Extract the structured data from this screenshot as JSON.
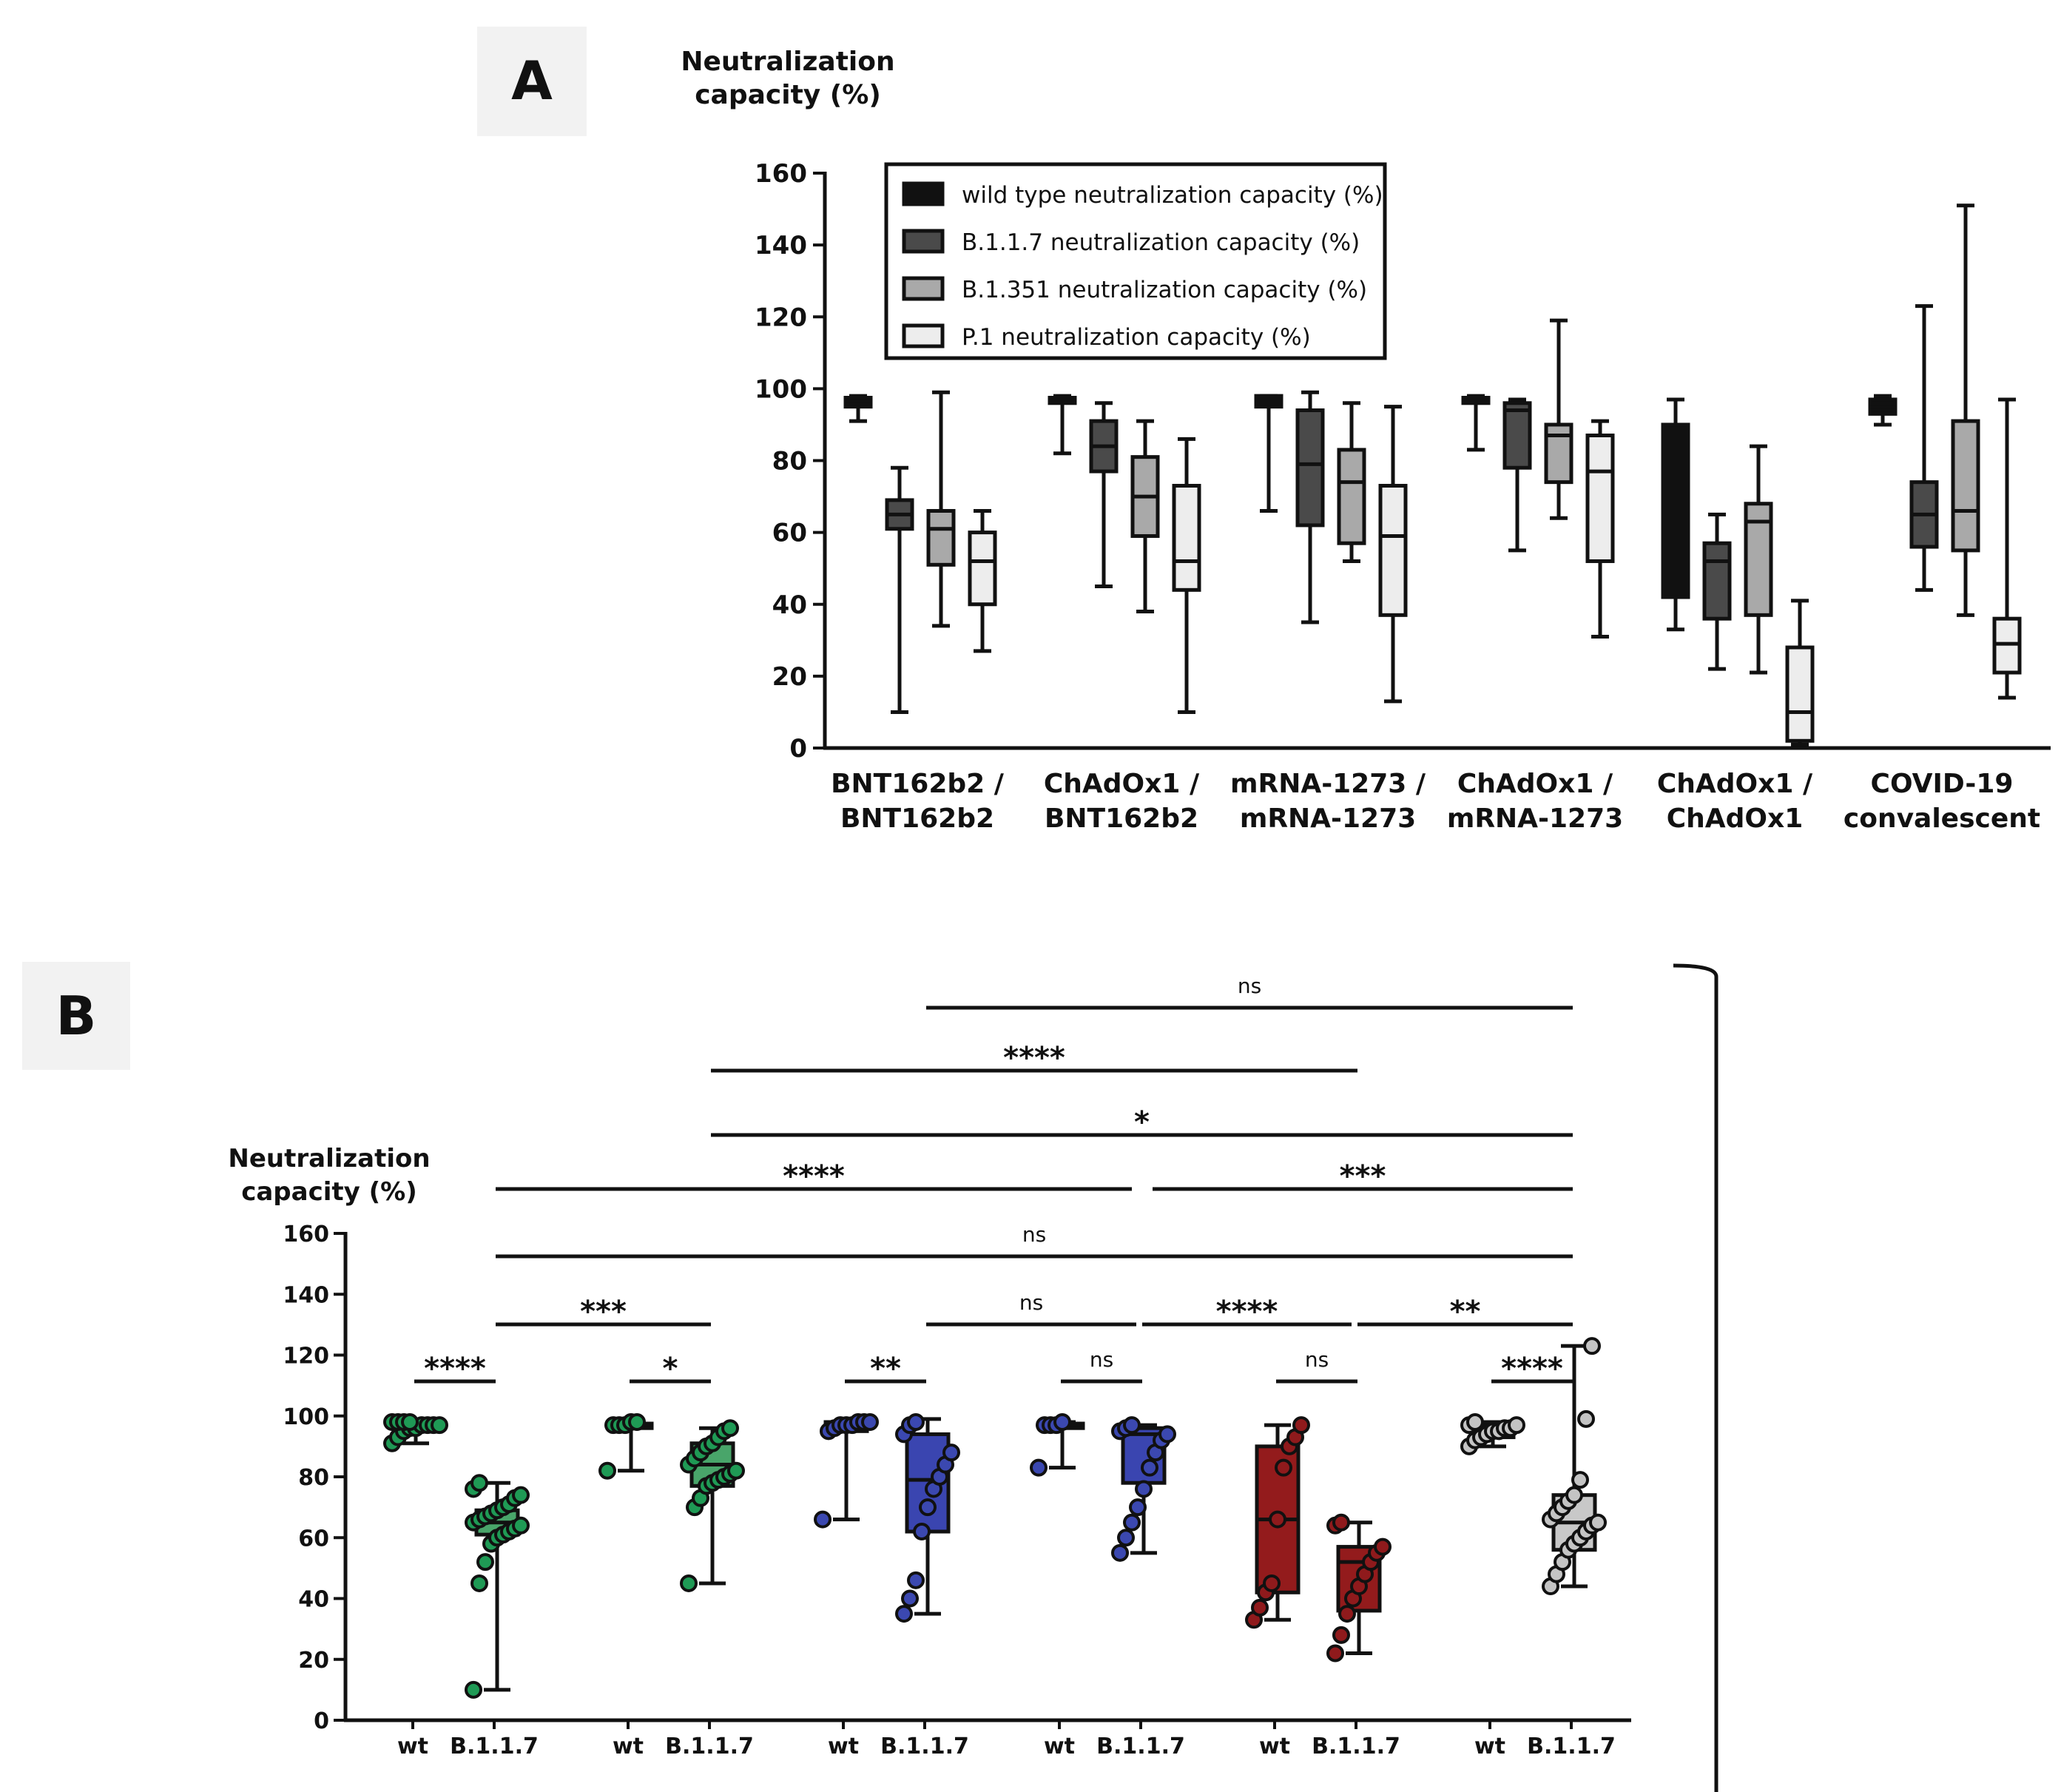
{
  "colors": {
    "wt_fill": "#111111",
    "b117_fill": "#4a4a4a",
    "b1351_fill": "#a9a9a9",
    "p1_fill": "#ededed",
    "panel_bg": "#f2f2f2",
    "green": "#1f9a55",
    "blue": "#3b48b0",
    "red": "#8f1a1c",
    "grey": "#c4c4c4",
    "green_box": "#49a56a",
    "blue_box": "#3a45b0",
    "red_box": "#931b1c",
    "grey_box": "#c8c8c8"
  },
  "chart_data": [
    {
      "panel": "A",
      "type": "box",
      "ylabel": "Neutralization capacity (%)",
      "ylim": [
        0,
        160
      ],
      "yticks": [
        0,
        20,
        40,
        60,
        80,
        100,
        120,
        140,
        160
      ],
      "ytick_labels": [
        "0",
        "20",
        "40",
        "60",
        "80",
        "100",
        "120",
        "140",
        "160"
      ],
      "legend": [
        "wild type neutralization capacity (%)",
        "B.1.1.7 neutralization capacity (%)",
        "B.1.351 neutralization capacity (%)",
        "P.1 neutralization capacity (%)"
      ],
      "legend_position": "top-left",
      "groups": [
        {
          "label1": "BNT162b2 /",
          "label2": "BNT162b2",
          "boxes": [
            {
              "series": "wild type",
              "min": 91,
              "q1": 95,
              "median": 96.5,
              "q3": 97.5,
              "max": 98
            },
            {
              "series": "B.1.1.7",
              "min": 10,
              "q1": 61,
              "median": 65,
              "q3": 69,
              "max": 78
            },
            {
              "series": "B.1.351",
              "min": 34,
              "q1": 51,
              "median": 61,
              "q3": 66,
              "max": 99
            },
            {
              "series": "P.1",
              "min": 27,
              "q1": 40,
              "median": 52,
              "q3": 60,
              "max": 66
            }
          ]
        },
        {
          "label1": "ChAdOx1 /",
          "label2": "BNT162b2",
          "boxes": [
            {
              "series": "wild type",
              "min": 82,
              "q1": 96,
              "median": 97,
              "q3": 97.5,
              "max": 98
            },
            {
              "series": "B.1.1.7",
              "min": 45,
              "q1": 77,
              "median": 84,
              "q3": 91,
              "max": 96
            },
            {
              "series": "B.1.351",
              "min": 38,
              "q1": 59,
              "median": 70,
              "q3": 81,
              "max": 91
            },
            {
              "series": "P.1",
              "min": 10,
              "q1": 44,
              "median": 52,
              "q3": 73,
              "max": 86
            }
          ]
        },
        {
          "label1": "mRNA-1273 /",
          "label2": "mRNA-1273",
          "boxes": [
            {
              "series": "wild type",
              "min": 66,
              "q1": 95,
              "median": 97,
              "q3": 98,
              "max": 98
            },
            {
              "series": "B.1.1.7",
              "min": 35,
              "q1": 62,
              "median": 79,
              "q3": 94,
              "max": 99
            },
            {
              "series": "B.1.351",
              "min": 52,
              "q1": 57,
              "median": 74,
              "q3": 83,
              "max": 96
            },
            {
              "series": "P.1",
              "min": 13,
              "q1": 37,
              "median": 59,
              "q3": 73,
              "max": 95
            }
          ]
        },
        {
          "label1": "ChAdOx1 /",
          "label2": "mRNA-1273",
          "boxes": [
            {
              "series": "wild type",
              "min": 83,
              "q1": 96,
              "median": 97,
              "q3": 97.5,
              "max": 98
            },
            {
              "series": "B.1.1.7",
              "min": 55,
              "q1": 78,
              "median": 94,
              "q3": 96,
              "max": 97
            },
            {
              "series": "B.1.351",
              "min": 64,
              "q1": 74,
              "median": 87,
              "q3": 90,
              "max": 119
            },
            {
              "series": "P.1",
              "min": 31,
              "q1": 52,
              "median": 77,
              "q3": 87,
              "max": 91
            }
          ]
        },
        {
          "label1": "ChAdOx1 /",
          "label2": "ChAdOx1",
          "boxes": [
            {
              "series": "wild type",
              "min": 33,
              "q1": 42,
              "median": 66,
              "q3": 90,
              "max": 97
            },
            {
              "series": "B.1.1.7",
              "min": 22,
              "q1": 36,
              "median": 52,
              "q3": 57,
              "max": 65
            },
            {
              "series": "B.1.351",
              "min": 21,
              "q1": 37,
              "median": 63,
              "q3": 68,
              "max": 84
            },
            {
              "series": "P.1",
              "min": 1,
              "q1": 2,
              "median": 10,
              "q3": 28,
              "max": 41
            }
          ]
        },
        {
          "label1": "COVID-19",
          "label2": "convalescent",
          "boxes": [
            {
              "series": "wild type",
              "min": 90,
              "q1": 93,
              "median": 95,
              "q3": 97,
              "max": 98
            },
            {
              "series": "B.1.1.7",
              "min": 44,
              "q1": 56,
              "median": 65,
              "q3": 74,
              "max": 123
            },
            {
              "series": "B.1.351",
              "min": 37,
              "q1": 55,
              "median": 66,
              "q3": 91,
              "max": 151
            },
            {
              "series": "P.1",
              "min": 14,
              "q1": 21,
              "median": 29,
              "q3": 36,
              "max": 97
            }
          ]
        }
      ]
    },
    {
      "panel": "B",
      "type": "box_scatter",
      "ylabel": "Neutralization capacity (%)",
      "ylim": [
        0,
        160
      ],
      "yticks": [
        0,
        20,
        40,
        60,
        80,
        100,
        120,
        140,
        160
      ],
      "ytick_labels": [
        "0",
        "20",
        "40",
        "60",
        "80",
        "100",
        "120",
        "140",
        "160"
      ],
      "categories": [
        "wt",
        "B.1.1.7",
        "wt",
        "B.1.1.7",
        "wt",
        "B.1.1.7",
        "wt",
        "B.1.1.7",
        "wt",
        "B.1.1.7",
        "wt",
        "B.1.1.7"
      ],
      "boxes": [
        {
          "category": "wt",
          "group": 1,
          "color": "green",
          "min": 91,
          "q1": 95,
          "median": 96.5,
          "q3": 97.5,
          "max": 98,
          "points": [
            91,
            93,
            95,
            96,
            96,
            97,
            97,
            97,
            97,
            98,
            98,
            98,
            98
          ]
        },
        {
          "category": "B.1.1.7",
          "group": 1,
          "color": "green",
          "min": 10,
          "q1": 61,
          "median": 65,
          "q3": 69,
          "max": 78,
          "points": [
            10,
            45,
            52,
            58,
            60,
            61,
            62,
            63,
            64,
            65,
            66,
            67,
            68,
            69,
            70,
            71,
            73,
            74,
            76,
            78
          ]
        },
        {
          "category": "wt",
          "group": 2,
          "color": "green",
          "min": 82,
          "q1": 96,
          "median": 97,
          "q3": 97.5,
          "max": 98,
          "points": [
            82,
            97,
            97,
            97,
            98,
            98
          ]
        },
        {
          "category": "B.1.1.7",
          "group": 2,
          "color": "green",
          "min": 45,
          "q1": 77,
          "median": 84,
          "q3": 91,
          "max": 96,
          "points": [
            45,
            70,
            73,
            77,
            78,
            79,
            80,
            81,
            82,
            84,
            86,
            88,
            90,
            91,
            93,
            95,
            96
          ]
        },
        {
          "category": "wt",
          "group": 3,
          "color": "blue",
          "min": 66,
          "q1": 95,
          "median": 97,
          "q3": 98,
          "max": 98,
          "points": [
            66,
            95,
            96,
            97,
            97,
            97,
            98,
            98,
            98
          ]
        },
        {
          "category": "B.1.1.7",
          "group": 3,
          "color": "blue",
          "min": 35,
          "q1": 62,
          "median": 79,
          "q3": 94,
          "max": 99,
          "points": [
            35,
            40,
            46,
            62,
            70,
            76,
            80,
            84,
            88,
            94,
            97,
            98
          ]
        },
        {
          "category": "wt",
          "group": 4,
          "color": "blue",
          "min": 83,
          "q1": 96,
          "median": 97,
          "q3": 97.5,
          "max": 98,
          "points": [
            83,
            97,
            97,
            97,
            98
          ]
        },
        {
          "category": "B.1.1.7",
          "group": 4,
          "color": "blue",
          "min": 55,
          "q1": 78,
          "median": 94,
          "q3": 96,
          "max": 97,
          "points": [
            55,
            60,
            65,
            70,
            76,
            83,
            88,
            92,
            94,
            95,
            96,
            97
          ]
        },
        {
          "category": "wt",
          "group": 5,
          "color": "red",
          "min": 33,
          "q1": 42,
          "median": 66,
          "q3": 90,
          "max": 97,
          "points": [
            33,
            37,
            42,
            45,
            66,
            83,
            90,
            93,
            97
          ]
        },
        {
          "category": "B.1.1.7",
          "group": 5,
          "color": "red",
          "min": 22,
          "q1": 36,
          "median": 52,
          "q3": 57,
          "max": 65,
          "points": [
            22,
            28,
            35,
            40,
            44,
            48,
            52,
            55,
            57,
            64,
            65
          ]
        },
        {
          "category": "wt",
          "group": 6,
          "color": "grey",
          "min": 90,
          "q1": 93,
          "median": 95,
          "q3": 97,
          "max": 98,
          "points": [
            90,
            92,
            93,
            94,
            95,
            95,
            96,
            96,
            97,
            97,
            98
          ]
        },
        {
          "category": "B.1.1.7",
          "group": 6,
          "color": "grey",
          "min": 44,
          "q1": 56,
          "median": 65,
          "q3": 74,
          "max": 123,
          "points": [
            44,
            48,
            52,
            56,
            58,
            60,
            62,
            64,
            65,
            66,
            68,
            70,
            72,
            74,
            79,
            99,
            123
          ]
        }
      ],
      "comparisons": [
        {
          "from": 0,
          "to": 1,
          "label": "****",
          "level": 1
        },
        {
          "from": 2,
          "to": 3,
          "label": "*",
          "level": 1
        },
        {
          "from": 4,
          "to": 5,
          "label": "**",
          "level": 1
        },
        {
          "from": 6,
          "to": 7,
          "label": "ns",
          "level": 1
        },
        {
          "from": 8,
          "to": 9,
          "label": "ns",
          "level": 1
        },
        {
          "from": 10,
          "to": 11,
          "label": "****",
          "level": 1
        },
        {
          "from": 1,
          "to": 3,
          "label": "***",
          "level": 2
        },
        {
          "from": 5,
          "to": 7,
          "label": "ns",
          "level": 2
        },
        {
          "from": 7,
          "to": 9,
          "label": "****",
          "level": 2
        },
        {
          "from": 9,
          "to": 11,
          "label": "**",
          "level": 2
        },
        {
          "from": 1,
          "to": 11,
          "label": "ns",
          "level": 3
        },
        {
          "from": 1,
          "to": 7,
          "label": "****",
          "level": 4
        },
        {
          "from": 7,
          "to": 11,
          "label": "***",
          "level": 4
        },
        {
          "from": 3,
          "to": 11,
          "label": "*",
          "level": 5
        },
        {
          "from": 3,
          "to": 9,
          "label": "****",
          "level": 6
        },
        {
          "from": 5,
          "to": 11,
          "label": "ns",
          "level": 7
        }
      ]
    }
  ],
  "panels": {
    "a": {
      "letter": "A",
      "ylabel_line1": "Neutralization",
      "ylabel_line2": "capacity (%)"
    },
    "b": {
      "letter": "B",
      "ylabel_line1": "Neutralization",
      "ylabel_line2": "capacity (%)"
    }
  }
}
